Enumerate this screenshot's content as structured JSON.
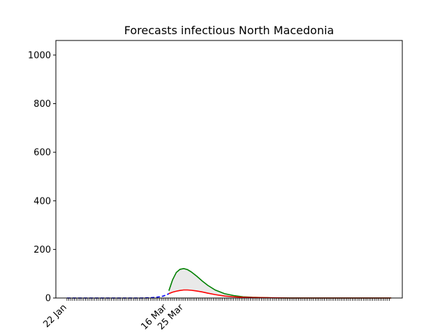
{
  "chart_data": {
    "type": "line",
    "title": "Forecasts infectious North Macedonia",
    "xlabel": "",
    "ylabel": "",
    "ylim": [
      0,
      1060
    ],
    "y_ticks": [
      0,
      200,
      400,
      600,
      800,
      1000
    ],
    "x_tick_labels": [
      {
        "label": "22 Jan",
        "day": 0
      },
      {
        "label": "16 Mar",
        "day": 54
      },
      {
        "label": "25 Mar",
        "day": 63
      }
    ],
    "x_range_days": [
      -6,
      181
    ],
    "grid": false,
    "legend": "none",
    "series": [
      {
        "color": "#0000ff",
        "x_days": [
          0,
          10,
          20,
          30,
          40,
          45,
          48,
          50,
          52,
          53,
          54,
          55
        ],
        "values": [
          0,
          0,
          0,
          0,
          0,
          1,
          3,
          5,
          8,
          11,
          14,
          18
        ]
      },
      {
        "color": "#008000",
        "x_days": [
          55,
          57,
          59,
          61,
          63,
          65,
          67,
          70,
          73,
          76,
          80,
          85,
          90,
          95,
          100,
          110,
          120,
          130,
          140,
          150,
          160,
          170,
          175
        ],
        "values": [
          30,
          75,
          105,
          118,
          121,
          117,
          108,
          90,
          70,
          52,
          33,
          18,
          10,
          5,
          3,
          1,
          0,
          0,
          0,
          0,
          0,
          0,
          0
        ]
      },
      {
        "color": "#ff0000",
        "x_days": [
          55,
          57,
          59,
          61,
          63,
          65,
          67,
          70,
          73,
          76,
          80,
          85,
          90,
          95,
          100,
          110,
          120,
          130,
          140,
          150,
          160,
          170,
          175
        ],
        "values": [
          18,
          24,
          28,
          31,
          33,
          33,
          32,
          29,
          25,
          20,
          14,
          8,
          5,
          3,
          2,
          1,
          0,
          0,
          0,
          0,
          0,
          0,
          0
        ]
      }
    ],
    "band": {
      "color": "#d3d3d3",
      "between": [
        1,
        2
      ]
    }
  }
}
